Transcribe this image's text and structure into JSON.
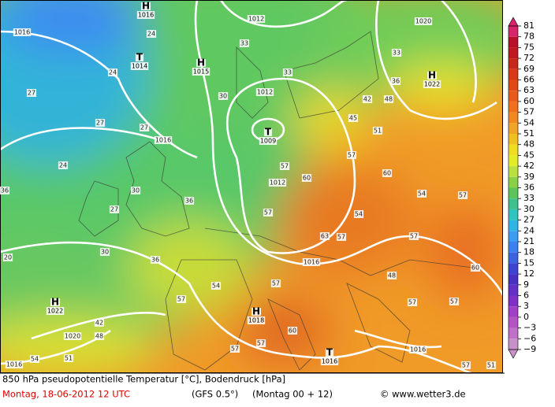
{
  "colorbar": {
    "ticks": [
      81,
      78,
      75,
      72,
      69,
      66,
      63,
      60,
      57,
      54,
      51,
      48,
      45,
      42,
      39,
      36,
      33,
      30,
      27,
      24,
      21,
      18,
      15,
      12,
      9,
      6,
      3,
      0,
      {
        "value": -3,
        "label": "−3"
      },
      {
        "value": -6,
        "label": "−6"
      },
      {
        "value": -9,
        "label": "−9"
      }
    ],
    "colors": [
      "#d8246a",
      "#b8102a",
      "#c01820",
      "#c82818",
      "#d83818",
      "#e04818",
      "#e85a1c",
      "#f07020",
      "#f08a20",
      "#f0a428",
      "#f0c020",
      "#f0dc20",
      "#e4ec28",
      "#b8e040",
      "#88d048",
      "#5cc458",
      "#40c08c",
      "#30c4c0",
      "#30b4e4",
      "#3c9cf0",
      "#3c80f0",
      "#3c64e0",
      "#3c44d0",
      "#4830c0",
      "#6430c4",
      "#8030c4",
      "#a040c4",
      "#b454c4",
      "#c070c8",
      "#c890c8"
    ]
  },
  "pressure_centers": [
    {
      "symbol": "H",
      "value": 1016
    },
    {
      "symbol": "T",
      "value": 1014
    },
    {
      "symbol": "H",
      "value": 1015
    },
    {
      "symbol": "T",
      "value": 1009
    },
    {
      "symbol": "H",
      "value": 1022
    },
    {
      "symbol": "H",
      "value": 1022
    },
    {
      "symbol": "H",
      "value": 1018
    },
    {
      "symbol": "T",
      "value": 1016
    }
  ],
  "isobar_labels": [
    1016,
    1012,
    1020,
    1012,
    1016,
    1012,
    1016,
    1020,
    1016,
    1016
  ],
  "temperature_labels": [
    24,
    24,
    27,
    27,
    27,
    24,
    30,
    27,
    30,
    36,
    57,
    36,
    33,
    33,
    30,
    33,
    36,
    42,
    48,
    45,
    51,
    57,
    60,
    57,
    60,
    57,
    54,
    57,
    63,
    57,
    57,
    60,
    48,
    54,
    54,
    57,
    60,
    57,
    57,
    48,
    42,
    54,
    51,
    51,
    57,
    57,
    57,
    20,
    36
  ],
  "footer": {
    "line1": "850 hPa pseudopotentielle Temperatur [°C], Bodendruck [hPa]",
    "date": "Montag, 18-06-2012  12 UTC",
    "model": "(GFS 0.5°)",
    "run": "(Montag 00 + 12)",
    "credit": "© www.wetter3.de"
  }
}
